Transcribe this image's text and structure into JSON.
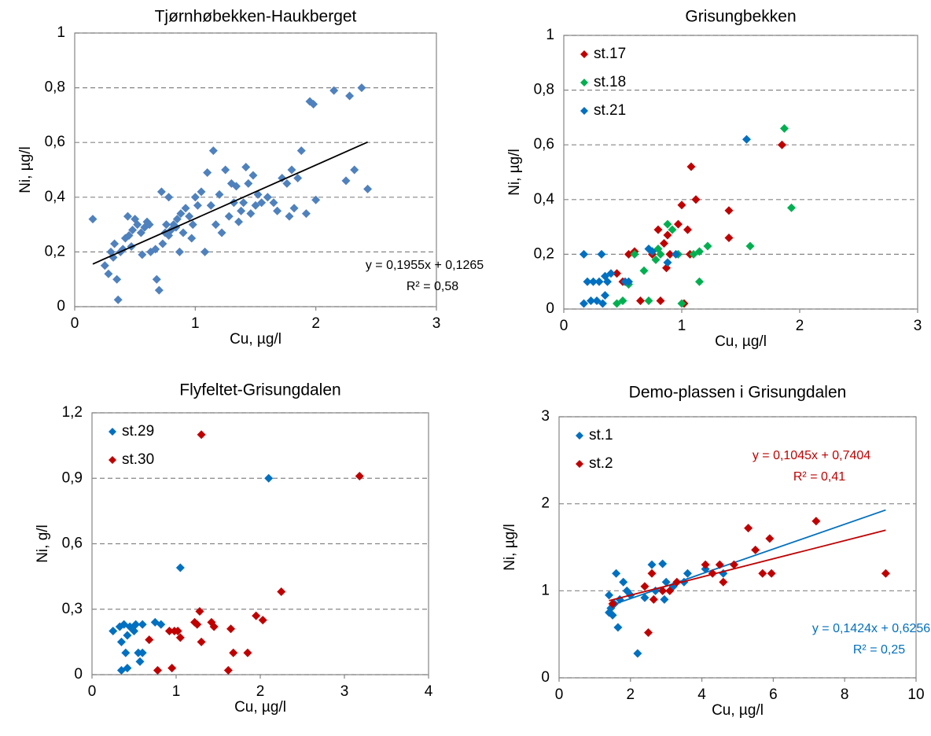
{
  "chart_data": [
    {
      "type": "scatter",
      "title": "Tjørnhøbekken-Haukberget",
      "xlabel": "Cu, µg/l",
      "ylabel": "Ni, µg/l",
      "xlim": [
        0,
        3
      ],
      "xticks": [
        0,
        1,
        2,
        3
      ],
      "ylim": [
        0,
        1
      ],
      "yticks": [
        0,
        {
          "value": 0.2,
          "label": "0,2"
        },
        {
          "value": 0.4,
          "label": "0,4"
        },
        {
          "value": 0.6,
          "label": "0,6"
        },
        {
          "value": 0.8,
          "label": "0,8"
        },
        1
      ],
      "grid": true,
      "series": [
        {
          "color": "#4f81bd",
          "x": [
            0.15,
            0.25,
            0.28,
            0.3,
            0.32,
            0.33,
            0.35,
            0.36,
            0.38,
            0.4,
            0.42,
            0.44,
            0.45,
            0.47,
            0.48,
            0.5,
            0.52,
            0.55,
            0.56,
            0.58,
            0.6,
            0.62,
            0.63,
            0.67,
            0.68,
            0.7,
            0.72,
            0.73,
            0.75,
            0.76,
            0.78,
            0.78,
            0.8,
            0.82,
            0.84,
            0.85,
            0.87,
            0.88,
            0.9,
            0.92,
            0.95,
            0.97,
            0.98,
            1.0,
            1.02,
            1.05,
            1.08,
            1.1,
            1.13,
            1.15,
            1.17,
            1.2,
            1.22,
            1.25,
            1.28,
            1.3,
            1.32,
            1.34,
            1.36,
            1.38,
            1.4,
            1.42,
            1.44,
            1.46,
            1.48,
            1.5,
            1.52,
            1.55,
            1.6,
            1.65,
            1.68,
            1.72,
            1.76,
            1.78,
            1.8,
            1.82,
            1.85,
            1.88,
            1.92,
            1.95,
            1.98,
            2.0,
            2.15,
            2.25,
            2.28,
            2.32,
            2.38,
            2.43
          ],
          "values": [
            0.32,
            0.15,
            0.12,
            0.2,
            0.18,
            0.23,
            0.1,
            0.025,
            0.2,
            0.21,
            0.25,
            0.33,
            0.26,
            0.22,
            0.28,
            0.32,
            0.3,
            0.27,
            0.19,
            0.29,
            0.31,
            0.3,
            0.2,
            0.21,
            0.1,
            0.06,
            0.42,
            0.23,
            0.27,
            0.3,
            0.4,
            0.26,
            0.28,
            0.3,
            0.29,
            0.32,
            0.2,
            0.34,
            0.27,
            0.36,
            0.33,
            0.25,
            0.3,
            0.4,
            0.37,
            0.42,
            0.2,
            0.49,
            0.37,
            0.57,
            0.3,
            0.41,
            0.27,
            0.5,
            0.33,
            0.45,
            0.38,
            0.44,
            0.31,
            0.35,
            0.38,
            0.51,
            0.45,
            0.34,
            0.48,
            0.37,
            0.41,
            0.38,
            0.4,
            0.38,
            0.35,
            0.47,
            0.45,
            0.33,
            0.5,
            0.36,
            0.47,
            0.57,
            0.34,
            0.75,
            0.74,
            0.39,
            0.79,
            0.46,
            0.77,
            0.5,
            0.8,
            0.43
          ],
          "trendline": {
            "slope": 0.1955,
            "intercept": 0.1265,
            "color": "#000000",
            "label": "y = 0,1955x + 0,1265",
            "r2_label": "R² = 0,58"
          }
        }
      ]
    },
    {
      "type": "scatter",
      "title": "Grisungbekken",
      "xlabel": "Cu, µg/l",
      "ylabel": "Ni, µg/l",
      "xlim": [
        0,
        3
      ],
      "xticks": [
        0,
        1,
        2,
        3
      ],
      "ylim": [
        0,
        1
      ],
      "yticks": [
        0,
        {
          "value": 0.2,
          "label": "0,2"
        },
        {
          "value": 0.4,
          "label": "0,4"
        },
        {
          "value": 0.6,
          "label": "0,6"
        },
        {
          "value": 0.8,
          "label": "0,8"
        },
        1
      ],
      "grid": true,
      "legend": "upper left",
      "series": [
        {
          "name": "st.17",
          "color": "#c00000",
          "x": [
            0.45,
            0.5,
            0.55,
            0.6,
            0.65,
            0.75,
            0.8,
            0.82,
            0.85,
            0.87,
            0.88,
            0.9,
            0.97,
            1.0,
            1.02,
            1.05,
            1.07,
            1.08,
            1.12,
            1.4,
            1.4,
            1.85
          ],
          "values": [
            0.13,
            0.1,
            0.2,
            0.21,
            0.03,
            0.2,
            0.29,
            0.03,
            0.24,
            0.15,
            0.27,
            0.2,
            0.31,
            0.38,
            0.02,
            0.29,
            0.2,
            0.52,
            0.4,
            0.36,
            0.26,
            0.6
          ]
        },
        {
          "name": "st.18",
          "color": "#00b050",
          "x": [
            0.45,
            0.5,
            0.55,
            0.6,
            0.68,
            0.72,
            0.75,
            0.78,
            0.8,
            0.82,
            0.88,
            0.92,
            0.97,
            1.0,
            1.1,
            1.15,
            1.15,
            1.22,
            1.58,
            1.87,
            1.93
          ],
          "values": [
            0.02,
            0.03,
            0.09,
            0.2,
            0.14,
            0.03,
            0.21,
            0.18,
            0.22,
            0.2,
            0.31,
            0.29,
            0.2,
            0.02,
            0.2,
            0.1,
            0.21,
            0.23,
            0.23,
            0.66,
            0.37
          ]
        },
        {
          "name": "st.21",
          "color": "#0070c0",
          "x": [
            0.17,
            0.17,
            0.2,
            0.23,
            0.25,
            0.28,
            0.3,
            0.32,
            0.33,
            0.35,
            0.35,
            0.37,
            0.4,
            0.52,
            0.55,
            0.72,
            0.75,
            0.88,
            0.95,
            1.55
          ],
          "values": [
            0.2,
            0.02,
            0.1,
            0.03,
            0.1,
            0.03,
            0.1,
            0.2,
            0.02,
            0.05,
            0.12,
            0.1,
            0.13,
            0.1,
            0.1,
            0.22,
            0.21,
            0.17,
            0.2,
            0.62
          ]
        }
      ]
    },
    {
      "type": "scatter",
      "title": "Flyfeltet-Grisungdalen",
      "xlabel": "Cu, µg/l",
      "ylabel": "Ni, g/l",
      "xlim": [
        0,
        4
      ],
      "xticks": [
        0,
        1,
        2,
        3,
        4
      ],
      "ylim": [
        0,
        1.2
      ],
      "yticks": [
        0,
        {
          "value": 0.3,
          "label": "0,3"
        },
        {
          "value": 0.6,
          "label": "0,6"
        },
        {
          "value": 0.9,
          "label": "0,9"
        },
        {
          "value": 1.2,
          "label": "1,2"
        }
      ],
      "grid": true,
      "legend": "upper left",
      "series": [
        {
          "name": "st.29",
          "color": "#0070c0",
          "x": [
            0.25,
            0.33,
            0.35,
            0.35,
            0.38,
            0.4,
            0.42,
            0.42,
            0.45,
            0.5,
            0.52,
            0.55,
            0.57,
            0.6,
            0.6,
            0.75,
            0.82,
            1.05,
            2.1
          ],
          "values": [
            0.2,
            0.22,
            0.15,
            0.02,
            0.23,
            0.1,
            0.03,
            0.18,
            0.22,
            0.2,
            0.23,
            0.1,
            0.06,
            0.23,
            0.1,
            0.24,
            0.23,
            0.49,
            0.9
          ]
        },
        {
          "name": "st.30",
          "color": "#c00000",
          "x": [
            0.68,
            0.78,
            0.92,
            0.95,
            0.98,
            1.02,
            1.05,
            1.22,
            1.25,
            1.28,
            1.3,
            1.3,
            1.42,
            1.45,
            1.62,
            1.65,
            1.68,
            1.85,
            1.95,
            2.03,
            2.25,
            3.18
          ],
          "values": [
            0.16,
            0.02,
            0.2,
            0.03,
            0.2,
            0.2,
            0.17,
            0.24,
            0.23,
            0.29,
            0.15,
            1.1,
            0.24,
            0.22,
            0.02,
            0.21,
            0.1,
            0.1,
            0.27,
            0.25,
            0.38,
            0.91
          ]
        }
      ]
    },
    {
      "type": "scatter",
      "title": "Demo-plassen i Grisungdalen",
      "xlabel": "Cu, µg/l",
      "ylabel": "Ni, µg/l",
      "xlim": [
        0,
        10
      ],
      "xticks": [
        0,
        2,
        4,
        6,
        8,
        10
      ],
      "ylim": [
        0,
        3
      ],
      "yticks": [
        0,
        1,
        2,
        3
      ],
      "grid": true,
      "legend": "upper left",
      "series": [
        {
          "name": "st.1",
          "color": "#0070c0",
          "x": [
            1.4,
            1.4,
            1.45,
            1.5,
            1.55,
            1.6,
            1.65,
            1.7,
            1.8,
            1.9,
            2.0,
            2.2,
            2.4,
            2.6,
            2.7,
            2.9,
            2.95,
            3.0,
            3.2,
            3.5,
            3.6,
            4.1,
            4.6
          ],
          "values": [
            0.75,
            0.95,
            0.8,
            0.72,
            0.85,
            1.2,
            0.58,
            0.9,
            1.1,
            1.0,
            0.95,
            0.28,
            0.92,
            1.3,
            1.0,
            1.31,
            0.9,
            1.1,
            1.05,
            1.1,
            1.2,
            1.25,
            1.2
          ],
          "trendline": {
            "slope": 0.1424,
            "intercept": 0.6256,
            "color": "#0070c0",
            "label": "y = 0,1424x + 0,6256",
            "r2_label": "R² = 0,25"
          }
        },
        {
          "name": "st.2",
          "color": "#c00000",
          "x": [
            1.5,
            2.4,
            2.5,
            2.6,
            2.65,
            2.9,
            3.1,
            3.3,
            4.1,
            4.3,
            4.5,
            4.6,
            4.9,
            5.3,
            5.5,
            5.7,
            5.9,
            5.95,
            7.2,
            9.15
          ],
          "values": [
            0.85,
            1.05,
            0.52,
            1.2,
            0.9,
            1.0,
            1.0,
            1.1,
            1.3,
            1.2,
            1.3,
            1.1,
            1.3,
            1.72,
            1.47,
            1.2,
            1.6,
            1.2,
            1.8,
            1.2
          ],
          "trendline": {
            "slope": 0.1045,
            "intercept": 0.7404,
            "color": "#c00000",
            "label": "y = 0,1045x + 0,7404",
            "r2_label": "R² = 0,41"
          }
        }
      ]
    }
  ]
}
